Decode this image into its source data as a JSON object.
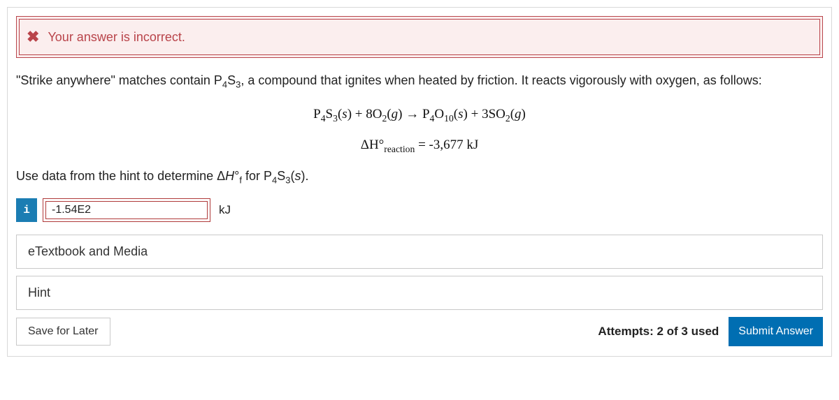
{
  "alert": {
    "icon_name": "x-icon",
    "message": "Your answer is incorrect.",
    "border_color": "#b9444a",
    "background_color": "#fbeeee",
    "text_color": "#b9444a"
  },
  "question": {
    "intro_html": "\"Strike anywhere\" matches contain P<sub>4</sub>S<sub>3</sub>, a compound that ignites when heated by friction. It reacts vigorously with oxygen, as follows:",
    "equation_html": "P<sub>4</sub>S<sub>3</sub>(<span class=\"italic\">s</span>) + 8O<sub>2</sub>(<span class=\"italic\">g</span>) &rarr; P<sub>4</sub>O<sub>10</sub>(<span class=\"italic\">s</span>) + 3SO<sub>2</sub>(<span class=\"italic\">g</span>)",
    "delta_h_html": "&Delta;H&deg;<sub>reaction</sub> = -3,677 kJ",
    "instruction_html": "Use data from the hint to determine &Delta;<span class=\"italic\">H</span>&deg;<sub>f</sub> for P<sub>4</sub>S<sub>3</sub>(<span class=\"italic\">s</span>)."
  },
  "answer": {
    "info_icon_label": "i",
    "input_value": "-1.54E2",
    "unit": "kJ",
    "input_border_color": "#b03a3a"
  },
  "panels": {
    "etextbook_label": "eTextbook and Media",
    "hint_label": "Hint"
  },
  "footer": {
    "save_label": "Save for Later",
    "attempts_label": "Attempts: 2 of 3 used",
    "submit_label": "Submit Answer"
  },
  "colors": {
    "container_border": "#d8d8d8",
    "info_btn_bg": "#1b7db3",
    "submit_bg": "#006eb2",
    "panel_border": "#c9c9c9"
  }
}
